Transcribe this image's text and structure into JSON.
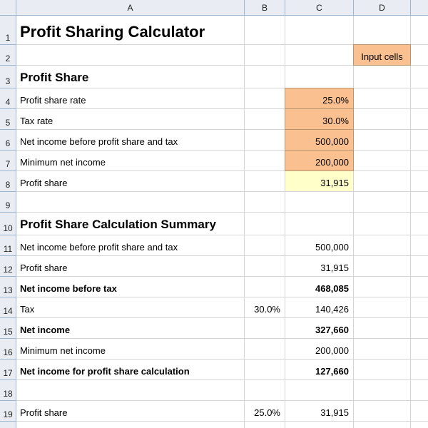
{
  "columns": [
    "A",
    "B",
    "C",
    "D"
  ],
  "rows": [
    "1",
    "2",
    "3",
    "4",
    "5",
    "6",
    "7",
    "8",
    "9",
    "10",
    "11",
    "12",
    "13",
    "14",
    "15",
    "16",
    "17",
    "18",
    "19"
  ],
  "title": "Profit Sharing Calculator",
  "legend": {
    "input_cells": "Input cells",
    "input_color": "#fac090",
    "result_color": "#ffffc9"
  },
  "profit_share": {
    "heading": "Profit Share",
    "rate_label": "Profit share rate",
    "rate_value": "25.0%",
    "tax_label": "Tax rate",
    "tax_value": "30.0%",
    "net_label": "Net income before profit share and tax",
    "net_value": "500,000",
    "min_label": "Minimum net income",
    "min_value": "200,000",
    "share_label": "Profit share",
    "share_value": "31,915"
  },
  "summary": {
    "heading": "Profit Share Calculation Summary",
    "r11": {
      "label": "Net income before profit share and tax",
      "value": "500,000"
    },
    "r12": {
      "label": "Profit share",
      "value": "31,915"
    },
    "r13": {
      "label": "Net income before tax",
      "value": "468,085"
    },
    "r14": {
      "label": "Tax",
      "rate": "30.0%",
      "value": "140,426"
    },
    "r15": {
      "label": "Net income",
      "value": "327,660"
    },
    "r16": {
      "label": "Minimum net income",
      "value": "200,000"
    },
    "r17": {
      "label": "Net income for profit share calculation",
      "value": "127,660"
    },
    "r19": {
      "label": "Profit share",
      "rate": "25.0%",
      "value": "31,915"
    }
  }
}
